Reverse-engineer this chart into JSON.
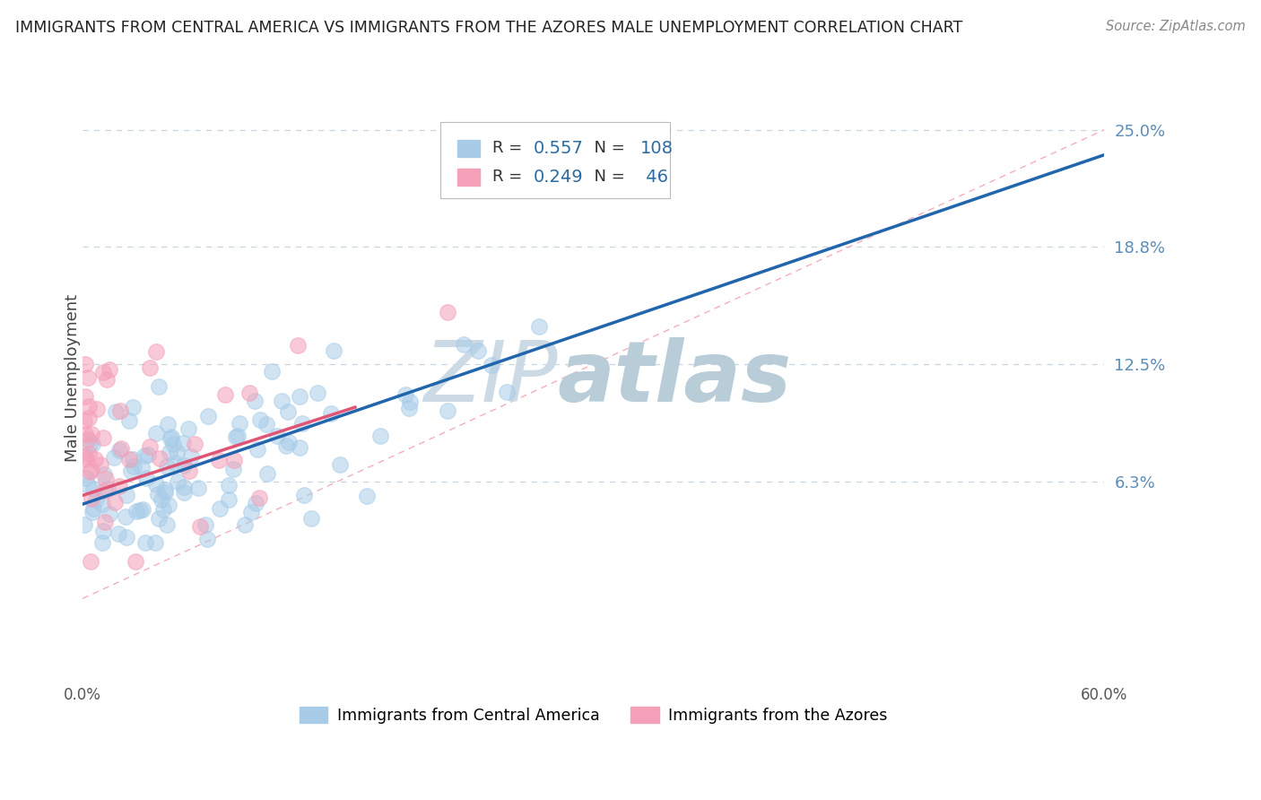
{
  "title": "IMMIGRANTS FROM CENTRAL AMERICA VS IMMIGRANTS FROM THE AZORES MALE UNEMPLOYMENT CORRELATION CHART",
  "source": "Source: ZipAtlas.com",
  "ylabel": "Male Unemployment",
  "xlim": [
    0.0,
    0.6
  ],
  "ylim": [
    -0.045,
    0.28
  ],
  "ytick_positions": [
    0.0625,
    0.125,
    0.1875,
    0.25
  ],
  "ytick_labels": [
    "6.3%",
    "12.5%",
    "18.8%",
    "25.0%"
  ],
  "xtick_positions": [
    0.0,
    0.6
  ],
  "xtick_labels": [
    "0.0%",
    "60.0%"
  ],
  "blue_scatter_color": "#a8cce8",
  "pink_scatter_color": "#f4a0b8",
  "blue_trend_color": "#2166ac",
  "pink_trend_color": "#e05575",
  "diag_color": "#f0a0b0",
  "grid_color": "#c8d4dc",
  "watermark_zip_color": "#ccdae5",
  "watermark_atlas_color": "#b8cdd8",
  "legend_box_color": "#dddddd",
  "legend_r_color": "#222222",
  "legend_val_color": "#2b6ca3",
  "ytick_color": "#5b8db8",
  "title_color": "#222222",
  "source_color": "#888888",
  "bottom_label_color": "#333333"
}
